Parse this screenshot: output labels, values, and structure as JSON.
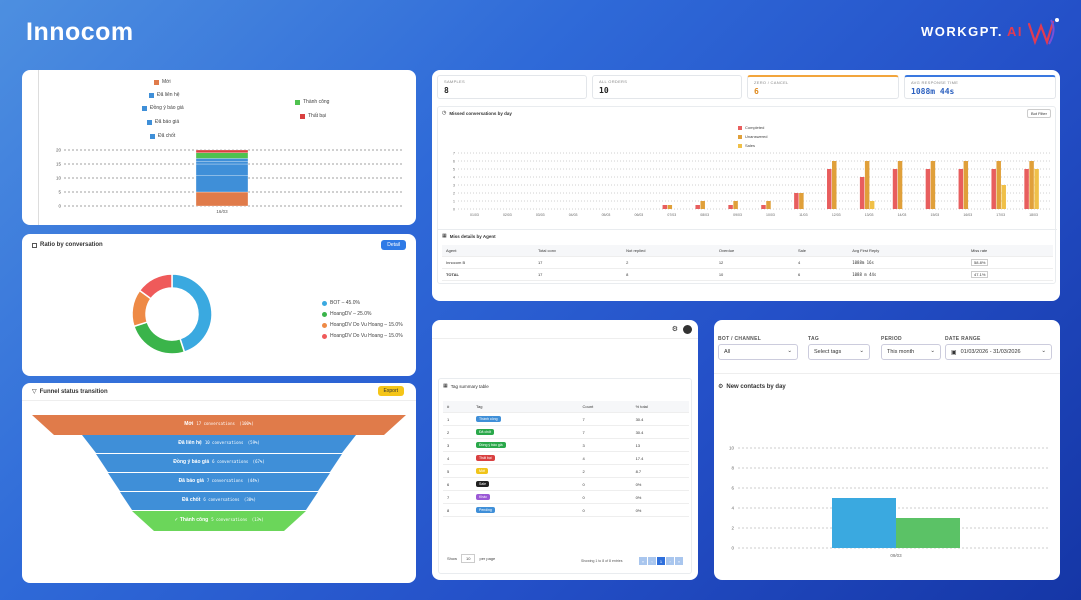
{
  "brand": {
    "left": "Innocom",
    "right_main": "WORKGPT.",
    "right_ai": "AI"
  },
  "colors": {
    "moi": "#e07b4a",
    "da_lien_he": "#3f8fd8",
    "dong_y": "#3f8fd8",
    "thanh_cong": "#4fc24f",
    "that_bai": "#d94040",
    "bot": "#3aa9e0",
    "green": "#3ab44a",
    "orange": "#ee8a46",
    "red": "#ef5a5a"
  },
  "stack_card": {
    "legend_left": [
      "Mới",
      "Đã liên hệ",
      "Đồng ý báo giá",
      "Đã báo giá",
      "Đã chốt"
    ],
    "legend_right": [
      "Thành công",
      "Thất bại"
    ],
    "y_ticks": [
      "20",
      "15",
      "10",
      "5",
      "0"
    ],
    "x_label": "16/03"
  },
  "ratio_card": {
    "title": "Ratio by conversation",
    "button": "Detail",
    "legend": [
      "BOT – 45.0%",
      "HoangDV – 25.0%",
      "HoangDV Do Vu Hoang – 15.0%",
      "HoangDV Do Vu Hoang – 15.0%"
    ]
  },
  "funnel_card": {
    "title": "Funnel status transition",
    "button": "Export",
    "stages": [
      {
        "label": "Mới",
        "detail": "17 conversations",
        "pct": "(100%)"
      },
      {
        "label": "Đã liên hệ",
        "detail": "10 conversations",
        "pct": "(59%)"
      },
      {
        "label": "Đồng ý báo giá",
        "detail": "6 conversations",
        "pct": "(67%)"
      },
      {
        "label": "Đã báo giá",
        "detail": "7 conversations",
        "pct": "(44%)"
      },
      {
        "label": "Đã chốt",
        "detail": "6 conversations",
        "pct": "(30%)"
      },
      {
        "label": "Thành công",
        "detail": "5 conversations",
        "pct": "(13%)"
      }
    ]
  },
  "overview_card": {
    "stats": [
      {
        "label": "SAMPLES",
        "value": "8"
      },
      {
        "label": "ALL ORDERS",
        "value": "10"
      },
      {
        "label": "ZERO / CANCEL",
        "value": "6"
      },
      {
        "label": "AVG RESPONSE TIME",
        "value": "1088m 44s"
      }
    ],
    "chart_title": "Missed conversations by day",
    "chart_button": "Bot Filter",
    "legend": [
      "Completed",
      "Unanswered",
      "Sales"
    ],
    "y_ticks": [
      "7",
      "6",
      "5",
      "4",
      "3",
      "2",
      "1",
      "0"
    ],
    "x_labels": [
      "01/03",
      "02/03",
      "03/03",
      "04/03",
      "05/03",
      "06/03",
      "07/03",
      "08/03",
      "09/03",
      "10/03",
      "11/03",
      "12/03",
      "13/03",
      "14/03",
      "15/03",
      "16/03",
      "17/03",
      "18/03"
    ],
    "table_title": "Miss details by Agent",
    "table_headers": [
      "Agent",
      "Total conv",
      "Not replied",
      "Overdue",
      "Sale",
      "Avg First Reply",
      "Miss rate"
    ],
    "table_rows": [
      [
        "Innocom B",
        "17",
        "2",
        "12",
        "4",
        "1088m 16s",
        "58.8%"
      ],
      [
        "TOTAL",
        "17",
        "8",
        "10",
        "6",
        "1088 m 44s",
        "47.1%"
      ]
    ]
  },
  "chart_data": [
    {
      "type": "bar",
      "title": "",
      "categories": [
        "16/03"
      ],
      "series": [
        {
          "name": "Mới",
          "values": [
            5
          ]
        },
        {
          "name": "Đã liên hệ",
          "values": [
            6
          ]
        },
        {
          "name": "Đồng ý báo giá",
          "values": [
            4
          ]
        },
        {
          "name": "Đã báo giá",
          "values": [
            1
          ]
        },
        {
          "name": "Đã chốt",
          "values": [
            1
          ]
        },
        {
          "name": "Thành công",
          "values": [
            2
          ]
        },
        {
          "name": "Thất bại",
          "values": [
            1
          ]
        }
      ],
      "ylim": [
        0,
        20
      ]
    },
    {
      "type": "pie",
      "labels": [
        "BOT",
        "HoangDV",
        "HoangDV Do Vu Hoang",
        "HoangDV Do Vu Hoang"
      ],
      "values": [
        45,
        25,
        15,
        15
      ]
    },
    {
      "type": "bar",
      "title": "Missed conversations by day",
      "categories": [
        "01/03",
        "02/03",
        "03/03",
        "04/03",
        "05/03",
        "06/03",
        "07/03",
        "08/03",
        "09/03",
        "10/03",
        "11/03",
        "12/03",
        "13/03",
        "14/03",
        "15/03",
        "16/03",
        "17/03",
        "18/03"
      ],
      "series": [
        {
          "name": "Completed",
          "values": [
            0,
            0,
            0,
            0,
            0,
            0,
            0.5,
            0.5,
            0.5,
            0.5,
            2,
            5,
            4,
            5,
            5,
            5,
            5,
            5
          ]
        },
        {
          "name": "Unanswered",
          "values": [
            0,
            0,
            0,
            0,
            0,
            0,
            0.5,
            1,
            1,
            1,
            2,
            6,
            6,
            6,
            6,
            6,
            6,
            6
          ]
        },
        {
          "name": "Sales",
          "values": [
            0,
            0,
            0,
            0,
            0,
            0,
            0,
            0,
            0,
            0,
            0,
            0,
            1,
            0,
            0,
            0,
            3,
            5
          ]
        }
      ],
      "ylim": [
        0,
        7
      ]
    },
    {
      "type": "bar",
      "title": "New contacts by day",
      "categories": [
        "09/03"
      ],
      "series": [
        {
          "name": "Blue",
          "values": [
            5
          ]
        },
        {
          "name": "Green",
          "values": [
            3
          ]
        }
      ],
      "ylim": [
        0,
        10
      ]
    }
  ],
  "tag_card": {
    "title": "Tag summary table",
    "headers": [
      "#",
      "Tag",
      "Count",
      "% total"
    ],
    "rows": [
      {
        "n": "1",
        "tag": "Thành công",
        "color": "#3f8fd8",
        "count": "7",
        "pct": "30.4"
      },
      {
        "n": "2",
        "tag": "Đã chốt",
        "color": "#2aa84a",
        "count": "7",
        "pct": "30.4"
      },
      {
        "n": "3",
        "tag": "Đồng ý báo giá",
        "color": "#2aa84a",
        "count": "3",
        "pct": "13"
      },
      {
        "n": "4",
        "tag": "Thất bại",
        "color": "#d94040",
        "count": "4",
        "pct": "17.4"
      },
      {
        "n": "5",
        "tag": "Mới",
        "color": "#f0c419",
        "count": "2",
        "pct": "8.7"
      },
      {
        "n": "6",
        "tag": "Sale",
        "color": "#222222",
        "count": "0",
        "pct": "0%"
      },
      {
        "n": "7",
        "tag": "Khác",
        "color": "#9b59d6",
        "count": "0",
        "pct": "0%"
      },
      {
        "n": "8",
        "tag": "Pending",
        "color": "#3f8fd8",
        "count": "0",
        "pct": "0%"
      }
    ],
    "show_label": "Show",
    "show_value": "10",
    "per_page": "per page",
    "showing": "Showing 1 to 8 of 8 entries",
    "pages": [
      "«",
      "‹",
      "1",
      "›",
      "»"
    ]
  },
  "contacts_card": {
    "filters": [
      {
        "label": "BOT / CHANNEL",
        "value": "All"
      },
      {
        "label": "TAG",
        "value": "Select tags"
      },
      {
        "label": "PERIOD",
        "value": "This month"
      },
      {
        "label": "DATE RANGE",
        "value": "01/03/2026 - 31/03/2026"
      }
    ],
    "title": "New contacts by day",
    "y_ticks": [
      "10",
      "8",
      "6",
      "4",
      "2",
      "0"
    ],
    "x_label": "09/03"
  }
}
